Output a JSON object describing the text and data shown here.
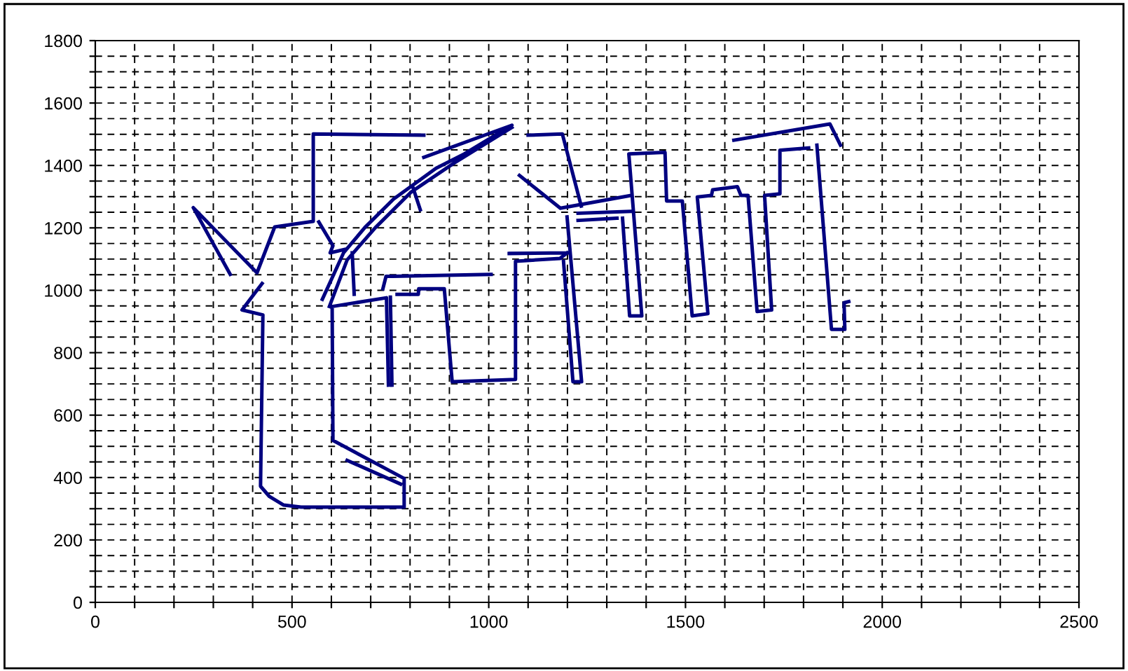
{
  "chart_data": {
    "type": "line",
    "x": [
      343,
      249,
      411,
      456,
      554,
      554,
      835,
      null,
      424,
      373,
      426,
      420,
      442,
      478,
      523,
      785,
      785,
      604,
      602,
      740,
      745,
      null,
      754,
      750,
      null,
      640,
      776,
      null,
      568,
      604,
      597,
      637,
      null,
      577,
      631,
      685,
      758,
      866,
      938,
      1059,
      835,
      null,
      595,
      640,
      712,
      803,
      911,
      1059,
      null,
      808,
      826,
      null,
      653,
      658,
      null,
      731,
      739,
      757,
      1006,
      null,
      767,
      821,
      822,
      887,
      907,
      1068,
      1068,
      1181,
      1199,
      null,
      1052,
      1199,
      null,
      1190,
      1214,
      1236,
      1199,
      null,
      1100,
      1187,
      1235,
      null,
      1078,
      1182,
      1362,
      null,
      1227,
      1362,
      null,
      1227,
      1326,
      null,
      1340,
      1358,
      1389,
      1356,
      1448,
      1452,
      1492,
      1517,
      1557,
      1530,
      1566,
      1569,
      1632,
      1641,
      1659,
      1682,
      1719,
      1701,
      1740,
      1740,
      1813,
      null,
      1623,
      1867,
      1894,
      null,
      1834,
      1871,
      1905,
      1903,
      1915
    ],
    "series": [
      {
        "color": "#000080",
        "values": [
          1051,
          1265,
          1056,
          1203,
          1221,
          1501,
          1497,
          null,
          1022,
          937,
          921,
          372,
          340,
          312,
          305,
          305,
          397,
          519,
          948,
          976,
          696,
          null,
          696,
          978,
          null,
          455,
          379,
          null,
          1219,
          1143,
          1120,
          1132,
          null,
          971,
          1120,
          1201,
          1292,
          1391,
          1437,
          1529,
          1426,
          null,
          948,
          1097,
          1201,
          1315,
          1407,
          1522,
          null,
          1327,
          1258,
          null,
          1120,
          987,
          null,
          1005,
          1045,
          1045,
          1051,
          null,
          987,
          987,
          1005,
          1005,
          707,
          714,
          1093,
          1102,
          1120,
          null,
          1118,
          1120,
          null,
          1093,
          707,
          707,
          1235,
          null,
          1497,
          1501,
          1270,
          null,
          1368,
          1263,
          1304,
          null,
          1247,
          1253,
          null,
          1224,
          1231,
          null,
          1231,
          918,
          918,
          1437,
          1442,
          1286,
          1286,
          918,
          925,
          1299,
          1304,
          1322,
          1332,
          1304,
          1304,
          932,
          937,
          1304,
          1309,
          1449,
          1456,
          null,
          1481,
          1533,
          1465,
          null,
          1465,
          875,
          875,
          960,
          964
        ]
      }
    ],
    "xlim": [
      0,
      2500
    ],
    "xticks": [
      0,
      {
        "value": 100,
        "label": null
      },
      {
        "value": 200,
        "label": null
      },
      {
        "value": 300,
        "label": null
      },
      {
        "value": 400,
        "label": null
      },
      500,
      {
        "value": 600,
        "label": null
      },
      {
        "value": 700,
        "label": null
      },
      {
        "value": 800,
        "label": null
      },
      {
        "value": 900,
        "label": null
      },
      1000,
      {
        "value": 1100,
        "label": null
      },
      {
        "value": 1200,
        "label": null
      },
      {
        "value": 1300,
        "label": null
      },
      {
        "value": 1400,
        "label": null
      },
      1500,
      {
        "value": 1600,
        "label": null
      },
      {
        "value": 1700,
        "label": null
      },
      {
        "value": 1800,
        "label": null
      },
      {
        "value": 1900,
        "label": null
      },
      2000,
      {
        "value": 2100,
        "label": null
      },
      {
        "value": 2200,
        "label": null
      },
      {
        "value": 2300,
        "label": null
      },
      {
        "value": 2400,
        "label": null
      },
      2500
    ],
    "ylim": [
      0,
      1800
    ],
    "yticks": [
      0,
      {
        "value": 50,
        "label": null
      },
      {
        "value": 100,
        "label": null
      },
      {
        "value": 150,
        "label": null
      },
      200,
      {
        "value": 250,
        "label": null
      },
      {
        "value": 300,
        "label": null
      },
      {
        "value": 350,
        "label": null
      },
      400,
      {
        "value": 450,
        "label": null
      },
      {
        "value": 500,
        "label": null
      },
      {
        "value": 550,
        "label": null
      },
      600,
      {
        "value": 650,
        "label": null
      },
      {
        "value": 700,
        "label": null
      },
      {
        "value": 750,
        "label": null
      },
      800,
      {
        "value": 850,
        "label": null
      },
      {
        "value": 900,
        "label": null
      },
      {
        "value": 950,
        "label": null
      },
      1000,
      {
        "value": 1050,
        "label": null
      },
      {
        "value": 1100,
        "label": null
      },
      {
        "value": 1150,
        "label": null
      },
      1200,
      {
        "value": 1250,
        "label": null
      },
      {
        "value": 1300,
        "label": null
      },
      {
        "value": 1350,
        "label": null
      },
      1400,
      {
        "value": 1450,
        "label": null
      },
      {
        "value": 1500,
        "label": null
      },
      {
        "value": 1550,
        "label": null
      },
      1600,
      {
        "value": 1650,
        "label": null
      },
      {
        "value": 1700,
        "label": null
      },
      {
        "value": 1750,
        "label": null
      },
      1800
    ],
    "grid": true,
    "marker": "none",
    "line_style": "solid"
  }
}
